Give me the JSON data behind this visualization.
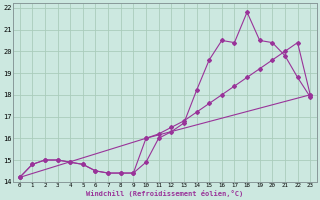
{
  "xlabel": "Windchill (Refroidissement éolien,°C)",
  "bg_color": "#cce8e0",
  "grid_color": "#aaccbb",
  "line_color": "#993399",
  "xlim": [
    -0.5,
    23.5
  ],
  "ylim": [
    14,
    22.2
  ],
  "yticks": [
    14,
    15,
    16,
    17,
    18,
    19,
    20,
    21,
    22
  ],
  "xticks": [
    0,
    1,
    2,
    3,
    4,
    5,
    6,
    7,
    8,
    9,
    10,
    11,
    12,
    13,
    14,
    15,
    16,
    17,
    18,
    19,
    20,
    21,
    22,
    23
  ],
  "line1_x": [
    0,
    1,
    2,
    3,
    4,
    5,
    6,
    7,
    8,
    9,
    10,
    11,
    12,
    13,
    14,
    15,
    16,
    17,
    18,
    19,
    20,
    21,
    22,
    23
  ],
  "line1_y": [
    14.2,
    14.8,
    15.0,
    15.0,
    14.9,
    14.8,
    14.5,
    14.4,
    14.4,
    14.4,
    14.9,
    16.0,
    16.3,
    16.7,
    18.2,
    19.6,
    20.5,
    20.4,
    21.8,
    20.5,
    20.4,
    19.8,
    18.8,
    17.9
  ],
  "line2_x": [
    0,
    1,
    2,
    3,
    4,
    5,
    6,
    7,
    8,
    9,
    10,
    11,
    12,
    13,
    14,
    15,
    16,
    17,
    18,
    19,
    20,
    21,
    22,
    23
  ],
  "line2_y": [
    14.2,
    14.8,
    15.0,
    15.0,
    14.9,
    14.8,
    14.5,
    14.4,
    14.4,
    14.4,
    16.0,
    16.2,
    16.5,
    16.8,
    17.2,
    17.6,
    18.0,
    18.4,
    18.8,
    19.2,
    19.6,
    20.0,
    20.4,
    18.0
  ],
  "line3_x": [
    0,
    10,
    23
  ],
  "line3_y": [
    14.2,
    16.0,
    18.0
  ]
}
